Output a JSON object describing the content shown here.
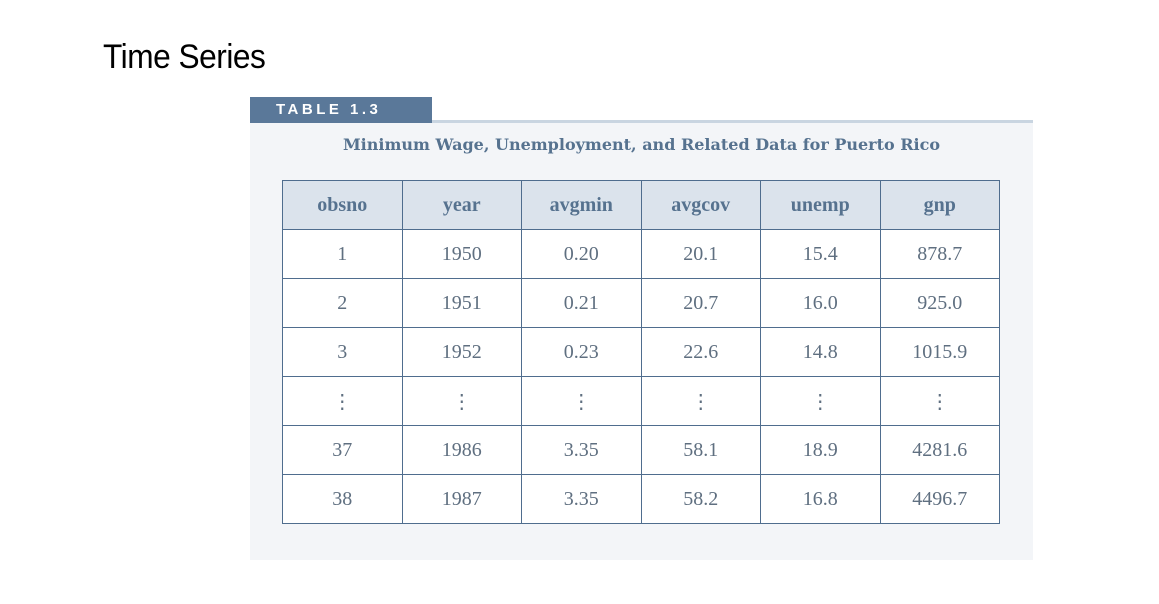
{
  "slide": {
    "title": "Time Series"
  },
  "table": {
    "label": "TABLE 1.3",
    "caption": "Minimum Wage, Unemployment, and Related Data for Puerto Rico",
    "columns": [
      "obsno",
      "year",
      "avgmin",
      "avgcov",
      "unemp",
      "gnp"
    ],
    "rows": [
      [
        "1",
        "1950",
        "0.20",
        "20.1",
        "15.4",
        "878.7"
      ],
      [
        "2",
        "1951",
        "0.21",
        "20.7",
        "16.0",
        "925.0"
      ],
      [
        "3",
        "1952",
        "0.23",
        "22.6",
        "14.8",
        "1015.9"
      ],
      [
        "⋮",
        "⋮",
        "⋮",
        "⋮",
        "⋮",
        "⋮"
      ],
      [
        "37",
        "1986",
        "3.35",
        "58.1",
        "18.9",
        "4281.6"
      ],
      [
        "38",
        "1987",
        "3.35",
        "58.2",
        "16.8",
        "4496.7"
      ]
    ]
  },
  "colors": {
    "label_background": "#5a7899",
    "header_background": "#dbe3ec",
    "border": "#4f6d8e",
    "caption_text": "#56728f",
    "cell_text": "#5f6f80"
  }
}
